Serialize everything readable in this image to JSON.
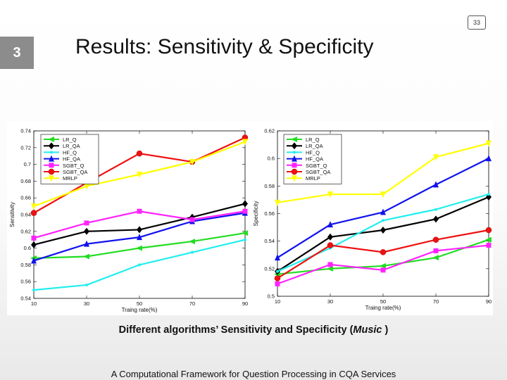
{
  "slide": {
    "number": "3",
    "page": "33",
    "title": "Results: Sensitivity & Specificity",
    "caption_main": "Different algorithms’ Sensitivity and Specificity (",
    "caption_italic": "Music",
    "caption_end": " )",
    "footer": "A Computational Framework for Question Processing in CQA Services"
  },
  "colors": {
    "LR_Q": "#22dd22",
    "LR_QA": "#000000",
    "HF_Q": "#22eeee",
    "HF_QA": "#1111ee",
    "SGBT_Q": "#ff22ff",
    "SGBT_QA": "#ee1111",
    "MRLP": "#ffff00"
  },
  "chart_data": [
    {
      "type": "line",
      "title": "",
      "xlabel": "Traing rate(%)",
      "ylabel": "Sensitivity",
      "x": [
        10,
        30,
        50,
        70,
        90
      ],
      "xticks": [
        "10",
        "30",
        "50",
        "70",
        "90"
      ],
      "ylim": [
        0.54,
        0.74
      ],
      "yticks": [
        "0.54",
        "0.56",
        "0.58",
        "0.6",
        "0.62",
        "0.64",
        "0.66",
        "0.68",
        "0.7",
        "0.72",
        "0.74"
      ],
      "legend": "top-left",
      "series": [
        {
          "name": "LR_Q",
          "values": [
            0.588,
            0.59,
            0.6,
            0.608,
            0.618
          ],
          "marker": "triangle-left"
        },
        {
          "name": "LR_QA",
          "values": [
            0.604,
            0.62,
            0.622,
            0.637,
            0.653
          ],
          "marker": "diamond"
        },
        {
          "name": "HF_Q",
          "values": [
            0.55,
            0.556,
            0.58,
            0.595,
            0.61
          ],
          "marker": "dot"
        },
        {
          "name": "HF_QA",
          "values": [
            0.585,
            0.605,
            0.613,
            0.632,
            0.642
          ],
          "marker": "triangle-up"
        },
        {
          "name": "SGBT_Q",
          "values": [
            0.612,
            0.63,
            0.644,
            0.634,
            0.644
          ],
          "marker": "square"
        },
        {
          "name": "SGBT_QA",
          "values": [
            0.642,
            0.678,
            0.713,
            0.703,
            0.732
          ],
          "marker": "circle"
        },
        {
          "name": "MRLP",
          "values": [
            0.65,
            0.674,
            0.688,
            0.703,
            0.727
          ],
          "marker": "triangle-down"
        }
      ]
    },
    {
      "type": "line",
      "title": "",
      "xlabel": "Traing rate(%)",
      "ylabel": "Specificity",
      "x": [
        10,
        30,
        50,
        70,
        90
      ],
      "xticks": [
        "10",
        "30",
        "50",
        "70",
        "90"
      ],
      "ylim": [
        0.5,
        0.62
      ],
      "yticks": [
        "0.5",
        "0.52",
        "0.54",
        "0.56",
        "0.58",
        "0.6",
        "0.62"
      ],
      "legend": "top-left",
      "series": [
        {
          "name": "LR_Q",
          "values": [
            0.516,
            0.52,
            0.522,
            0.528,
            0.541
          ],
          "marker": "triangle-left"
        },
        {
          "name": "LR_QA",
          "values": [
            0.518,
            0.543,
            0.548,
            0.556,
            0.572
          ],
          "marker": "diamond"
        },
        {
          "name": "HF_Q",
          "values": [
            0.518,
            0.535,
            0.555,
            0.563,
            0.574
          ],
          "marker": "dot"
        },
        {
          "name": "HF_QA",
          "values": [
            0.528,
            0.552,
            0.561,
            0.581,
            0.6
          ],
          "marker": "triangle-up"
        },
        {
          "name": "SGBT_Q",
          "values": [
            0.509,
            0.523,
            0.519,
            0.533,
            0.537
          ],
          "marker": "square"
        },
        {
          "name": "SGBT_QA",
          "values": [
            0.513,
            0.537,
            0.532,
            0.541,
            0.548
          ],
          "marker": "circle"
        },
        {
          "name": "MRLP",
          "values": [
            0.568,
            0.574,
            0.574,
            0.601,
            0.611
          ],
          "marker": "triangle-down"
        }
      ]
    }
  ]
}
